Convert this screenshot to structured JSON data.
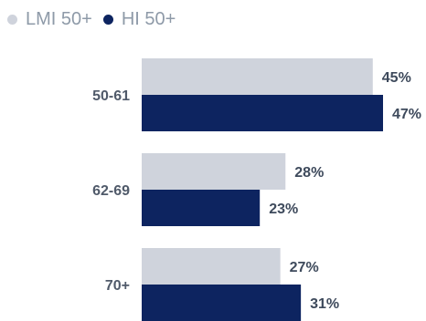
{
  "chart_data": {
    "type": "bar",
    "orientation": "horizontal",
    "categories": [
      "50-61",
      "62-69",
      "70+"
    ],
    "series": [
      {
        "name": "LMI 50+",
        "values": [
          45,
          28,
          27
        ],
        "labels": [
          "45%",
          "28%",
          "27%"
        ],
        "color": "#cfd3dc"
      },
      {
        "name": "HI 50+",
        "values": [
          47,
          23,
          31
        ],
        "labels": [
          "47%",
          "23%",
          "31%"
        ],
        "color": "#0d2460"
      }
    ],
    "xlim": [
      0,
      47
    ],
    "legend_position": "top-left",
    "grid": false
  }
}
